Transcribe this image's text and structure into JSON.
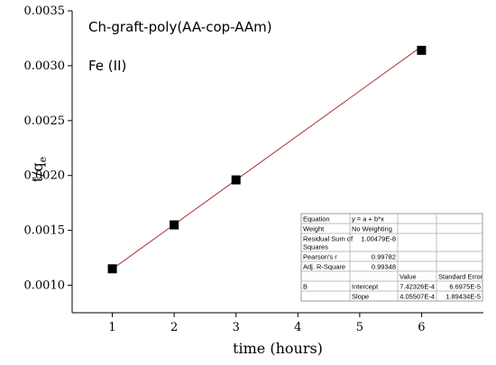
{
  "chart_data": {
    "type": "scatter",
    "xlabel": "time (hours)",
    "ylabel": "t/q",
    "ylabel_sub": "e",
    "xlim": [
      0.35,
      7.0
    ],
    "ylim": [
      0.00075,
      0.0035
    ],
    "xticks": [
      1,
      2,
      3,
      4,
      5,
      6
    ],
    "yticks": [
      0.001,
      0.0015,
      0.002,
      0.0025,
      0.003,
      0.0035
    ],
    "ytick_labels": [
      "0.0010",
      "0.0015",
      "0.0020",
      "0.0025",
      "0.0030",
      "0.0035"
    ],
    "grid": false,
    "annotations": [
      "Ch-graft-poly(AA-cop-AAm)",
      "Fe (II)"
    ],
    "series": [
      {
        "points": [
          {
            "x": 1,
            "y": 0.00115
          },
          {
            "x": 2,
            "y": 0.00155
          },
          {
            "x": 3,
            "y": 0.00196
          },
          {
            "x": 6,
            "y": 0.00314
          }
        ],
        "marker": "square",
        "color": "#000000"
      }
    ],
    "fit_line": {
      "intercept": 0.000742326,
      "slope": 0.000405507,
      "x_range": [
        1,
        6
      ],
      "color": "#b03030"
    },
    "fit_table": {
      "rows": [
        [
          "Equation",
          "y = a + b*x",
          "",
          ""
        ],
        [
          "Weight",
          "No Weighting",
          "",
          ""
        ],
        [
          "Residual Sum of Squares",
          "1.00479E-8",
          "",
          ""
        ],
        [
          "Pearson's r",
          "0.99782",
          "",
          ""
        ],
        [
          "Adj. R-Square",
          "0.99348",
          "",
          ""
        ],
        [
          "",
          "",
          "Value",
          "Standard Error"
        ],
        [
          "B",
          "Intercept",
          "7.42326E-4",
          "6.6975E-5"
        ],
        [
          "",
          "Slope",
          "4.05507E-4",
          "1.89434E-5"
        ]
      ]
    }
  }
}
